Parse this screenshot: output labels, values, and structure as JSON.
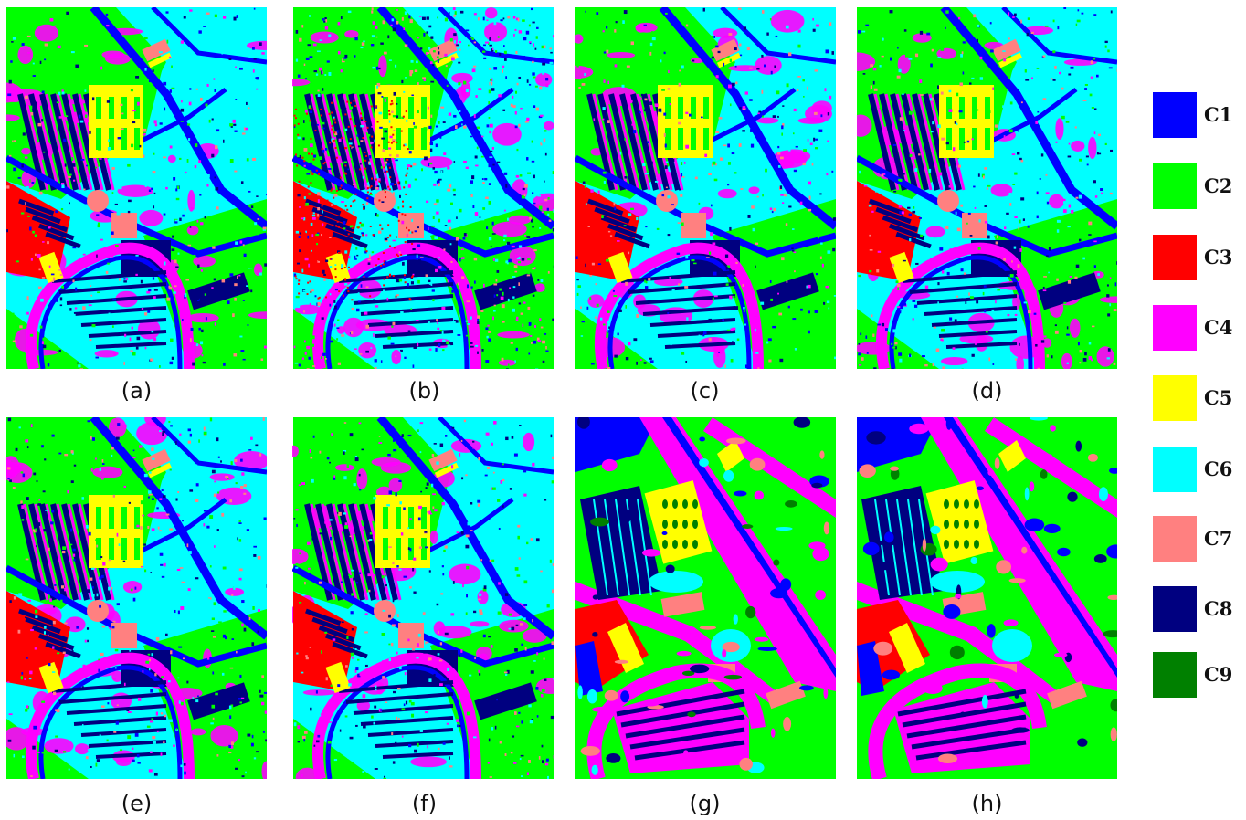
{
  "panels": [
    {
      "id": "a",
      "label": "(a)"
    },
    {
      "id": "b",
      "label": "(b)"
    },
    {
      "id": "c",
      "label": "(c)"
    },
    {
      "id": "d",
      "label": "(d)"
    },
    {
      "id": "e",
      "label": "(e)"
    },
    {
      "id": "f",
      "label": "(f)"
    },
    {
      "id": "g",
      "label": "(g)"
    },
    {
      "id": "h",
      "label": "(h)"
    }
  ],
  "legend": [
    {
      "label": "C1",
      "color": "#0000FF"
    },
    {
      "label": "C2",
      "color": "#00FF00"
    },
    {
      "label": "C3",
      "color": "#FF0000"
    },
    {
      "label": "C4",
      "color": "#FF00FF"
    },
    {
      "label": "C5",
      "color": "#FFFF00"
    },
    {
      "label": "C6",
      "color": "#00FFFF"
    },
    {
      "label": "C7",
      "color": "#FF8080"
    },
    {
      "label": "C8",
      "color": "#000080"
    },
    {
      "label": "C9",
      "color": "#008000"
    }
  ]
}
